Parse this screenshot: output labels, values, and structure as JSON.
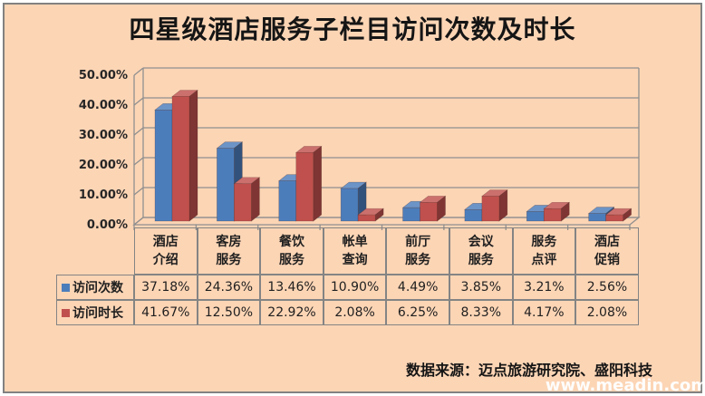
{
  "title": "四星级酒店服务子栏目访问次数及时长",
  "chart_data": {
    "type": "bar",
    "style": "3d-clustered-column",
    "title": "四星级酒店服务子栏目访问次数及时长",
    "categories": [
      "酒店介绍",
      "客房服务",
      "餐饮服务",
      "帐单查询",
      "前厅服务",
      "会议服务",
      "服务点评",
      "酒店促销"
    ],
    "series": [
      {
        "name": "访问次数",
        "color": "#4C7DBB",
        "values": [
          37.18,
          24.36,
          13.46,
          10.9,
          4.49,
          3.85,
          3.21,
          2.56
        ],
        "labels": [
          "37.18%",
          "24.36%",
          "13.46%",
          "10.90%",
          "4.49%",
          "3.85%",
          "3.21%",
          "2.56%"
        ]
      },
      {
        "name": "访问时长",
        "color": "#C0504D",
        "values": [
          41.67,
          12.5,
          22.92,
          2.08,
          6.25,
          8.33,
          4.17,
          2.08
        ],
        "labels": [
          "41.67%",
          "12.50%",
          "22.92%",
          "2.08%",
          "6.25%",
          "8.33%",
          "4.17%",
          "2.08%"
        ]
      }
    ],
    "ylim": [
      0,
      50
    ],
    "ytick_step": 10,
    "yticks": [
      "0.00%",
      "10.00%",
      "20.00%",
      "30.00%",
      "40.00%",
      "50.00%"
    ],
    "grid": true,
    "legend_position": "table-left-column"
  },
  "footer": {
    "source": "数据来源：迈点旅游研究院、盛阳科技",
    "watermark": "www.meadin.com"
  },
  "colors": {
    "background": "#FCD5B5",
    "frame_border": "#818181",
    "grid_line": "#8F8F8F",
    "table_border": "#848484",
    "text": "#1F1F1F",
    "watermark_text": "#FFFFFF"
  }
}
